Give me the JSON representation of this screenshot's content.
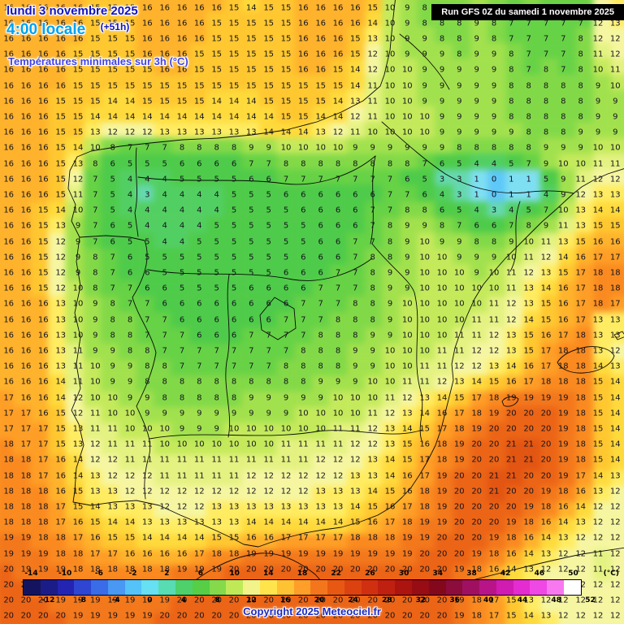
{
  "header": {
    "date": "lundi 3 novembre 2025",
    "time": "4:00 locale",
    "offset": "(+51h)",
    "subtitle": "Températures minimales sur 3h (°C)",
    "run_info": "Run GFS 0Z du samedi 1 novembre 2025"
  },
  "footer": {
    "copyright": "Copyright 2025 Meteociel.fr",
    "unit_label": "(°C)"
  },
  "scale": {
    "min": -14,
    "max": 52,
    "step": 2,
    "top_labels": [
      -14,
      -10,
      -6,
      -2,
      2,
      6,
      10,
      14,
      18,
      22,
      26,
      30,
      34,
      38,
      42,
      46,
      50
    ],
    "bottom_labels": [
      -12,
      -8,
      -4,
      0,
      4,
      8,
      12,
      16,
      20,
      24,
      28,
      32,
      36,
      40,
      44,
      48,
      52
    ],
    "segment_colors": [
      "#14145e",
      "#1c1c88",
      "#2424b2",
      "#2e46d2",
      "#3a6ce8",
      "#4898f4",
      "#55c2f8",
      "#66e0f2",
      "#58dcb2",
      "#4ed06a",
      "#56ce46",
      "#84da4a",
      "#c0e958",
      "#f2f388",
      "#ffe44c",
      "#ffc232",
      "#ff9e28",
      "#f4761c",
      "#e85812",
      "#dc4210",
      "#d03010",
      "#c02010",
      "#ac1410",
      "#980c14",
      "#84081c",
      "#8c0c3c",
      "#a01060",
      "#b81488",
      "#d01cb0",
      "#e42cd0",
      "#f048e4",
      "#f878f0",
      "#ffffff"
    ]
  },
  "map": {
    "palette": [
      {
        "upto": -10,
        "color": "#2828a8"
      },
      {
        "upto": -6,
        "color": "#3a5ae0"
      },
      {
        "upto": -2,
        "color": "#4a9af4"
      },
      {
        "upto": 0,
        "color": "#5ec8f8"
      },
      {
        "upto": 1,
        "color": "#7fdff2"
      },
      {
        "upto": 3,
        "color": "#66d8b0"
      },
      {
        "upto": 4,
        "color": "#52cf62"
      },
      {
        "upto": 6,
        "color": "#4ecb4a"
      },
      {
        "upto": 7,
        "color": "#66d246"
      },
      {
        "upto": 8,
        "color": "#82d948"
      },
      {
        "upto": 9,
        "color": "#a2e14e"
      },
      {
        "upto": 10,
        "color": "#c4ea5c"
      },
      {
        "upto": 11,
        "color": "#e4f282"
      },
      {
        "upto": 12,
        "color": "#f6f6a2"
      },
      {
        "upto": 13,
        "color": "#ffec62"
      },
      {
        "upto": 14,
        "color": "#ffda3c"
      },
      {
        "upto": 15,
        "color": "#ffc730"
      },
      {
        "upto": 16,
        "color": "#ffb22c"
      },
      {
        "upto": 17,
        "color": "#ff9e26"
      },
      {
        "upto": 18,
        "color": "#fa8a20"
      },
      {
        "upto": 19,
        "color": "#f3781c"
      },
      {
        "upto": 20,
        "color": "#ec6416"
      },
      {
        "upto": 21,
        "color": "#e25512"
      },
      {
        "upto": 99,
        "color": "#d84a0e"
      }
    ],
    "grid": {
      "cols": 36,
      "rows": 40,
      "values": [
        "16 16 16 16 16 15 15 15 16 16 16 16 16 15 14 15 15 16 16 16 16 15 10 9 8 8 8 9 8 7 8 7 7 7 12 13",
        "16 16 16 16 16 15 15 15 16 16 16 16 15 15 15 15 15 16 16 16 16 14 10 9 8 8 8 9 8 7 7 7 7 7 12 13",
        "16 16 16 16 16 15 15 15 16 16 16 16 15 15 15 15 15 16 16 16 15 13 10 9 9 8 8 9 8 7 7 7 7 8 12 12",
        "16 16 16 16 15 15 15 15 16 16 16 15 15 15 15 15 15 16 16 16 15 12 10 9 9 9 8 9 9 8 7 7 7 8 11 12",
        "16 16 16 16 15 15 15 15 15 16 16 15 15 15 15 15 15 16 16 15 14 12 10 10 9 9 9 9 9 8 7 8 7 8 10 11",
        "16 16 16 16 15 15 15 15 15 15 15 15 15 15 15 15 15 15 15 15 14 11 10 10 9 9 9 9 9 8 8 8 8 8 9 10",
        "16 16 16 15 15 15 14 14 15 15 15 15 14 14 14 15 15 15 15 14 13 11 10 10 9 9 9 9 9 8 8 8 8 8 9 9",
        "16 16 16 15 15 14 14 14 14 14 14 14 14 14 14 14 15 15 14 14 12 11 10 10 10 9 9 9 9 8 8 8 8 8 9 9",
        "16 16 16 15 15 13 12 12 12 13 13 13 13 13 13 14 14 14 13 12 11 10 10 10 10 9 9 9 9 9 8 8 8 9 9 9",
        "16 16 16 15 14 10 8 7 7 7 8 8 8 8 9 9 10 10 10 10 9 9 9 9 9 9 8 8 8 8 8 9 9 9 10 10",
        "16 16 16 15 13 8 6 5 5 5 6 6 6 6 7 7 8 8 8 8 8 8 8 8 7 6 5 4 4 5 7 9 10 10 11 11",
        "16 16 16 15 12 7 5 4 4 4 5 5 5 5 6 6 7 7 7 7 7 7 7 6 5 3 3 1 0 1 1 5 9 11 12 12",
        "16 16 16 15 11 7 5 4 3 4 4 4 4 5 5 5 6 6 6 6 6 6 7 7 6 4 3 1 0 1 1 4 9 12 13 13",
        "16 16 15 14 10 7 5 4 4 4 4 4 4 5 5 5 5 6 6 6 6 7 7 8 8 6 5 4 3 4 5 7 10 13 14 14",
        "16 16 15 13 9 7 6 5 4 4 4 4 5 5 5 5 5 5 6 6 6 7 8 9 9 8 7 6 6 7 8 9 11 13 15 15",
        "16 16 15 12 9 7 6 5 5 4 4 5 5 5 5 5 5 5 6 6 7 7 8 9 10 9 9 8 8 9 10 11 13 15 16 16",
        "16 16 15 12 9 8 7 6 5 5 5 5 5 5 5 5 5 6 6 6 7 8 8 9 10 10 9 9 9 10 11 12 14 16 17 17",
        "16 16 15 12 9 8 7 6 6 5 5 5 5 5 5 5 6 6 6 7 7 8 9 9 10 10 10 9 10 11 12 13 15 17 18 18",
        "16 16 15 12 10 8 7 7 6 6 5 5 5 5 6 6 6 6 7 7 7 8 9 9 10 10 10 10 10 11 13 14 16 17 18 18",
        "16 16 16 13 10 9 8 7 7 6 6 6 6 6 6 6 6 7 7 7 8 8 9 10 10 10 10 10 11 12 13 15 16 17 18 17",
        "16 16 16 13 10 9 8 8 7 7 6 6 6 6 6 6 7 7 7 8 8 8 9 10 10 10 10 11 11 12 14 15 16 17 13 13",
        "16 16 16 13 10 9 8 8 7 7 7 6 6 6 7 7 7 7 8 8 8 9 9 10 10 10 11 11 12 13 15 16 17 18 13 13",
        "16 16 16 13 11 9 9 8 8 7 7 7 7 7 7 7 7 8 8 8 9 9 10 10 10 11 11 12 12 13 15 17 18 18 13 12",
        "16 16 16 13 11 10 9 9 8 8 7 7 7 7 7 7 8 8 8 8 9 9 10 10 11 11 12 12 13 14 16 17 18 18 14 13",
        "16 16 16 14 11 10 9 9 8 8 8 8 8 8 8 8 8 8 9 9 9 10 10 11 11 12 13 14 15 16 17 18 18 18 15 14",
        "17 16 16 14 12 10 10 9 9 8 8 8 8 8 9 9 9 9 9 10 10 10 11 12 13 14 15 17 18 19 19 19 19 18 15 14",
        "17 17 16 15 12 11 10 10 9 9 9 9 9 9 9 9 9 10 10 10 10 11 12 13 14 16 17 18 19 20 20 20 19 18 15 14",
        "17 17 17 15 13 11 11 10 10 10 9 9 9 10 10 10 10 10 10 11 11 12 13 14 15 17 18 19 20 20 20 20 19 18 15 14",
        "18 17 17 15 13 12 11 11 11 10 10 10 10 10 10 10 11 11 11 11 12 12 13 15 16 18 19 20 20 21 21 20 19 18 15 14",
        "18 18 17 16 14 12 12 11 11 11 11 11 11 11 11 11 11 11 12 12 12 13 14 15 17 18 19 20 20 21 21 20 19 18 15 14",
        "18 18 17 16 14 13 12 12 12 11 11 11 11 11 12 12 12 12 12 12 13 13 14 16 17 19 20 20 21 21 20 20 19 17 14 13",
        "18 18 18 16 15 13 13 12 12 12 12 12 12 12 12 12 12 12 13 13 13 14 15 16 18 19 20 20 21 20 20 19 18 16 13 12",
        "18 18 18 17 15 14 13 13 13 12 12 12 13 13 13 13 13 13 13 13 14 15 16 17 18 19 20 20 20 20 19 18 16 14 12 12",
        "18 18 18 17 16 15 14 14 13 13 13 13 13 13 14 14 14 14 14 14 15 16 17 18 19 19 20 20 20 19 18 16 14 13 12 12",
        "19 19 18 18 17 16 15 15 14 14 14 14 15 15 16 16 17 17 17 17 18 18 18 19 19 20 20 20 19 18 16 14 13 12 12 12",
        "19 19 19 18 18 17 17 16 16 16 16 17 18 18 19 19 19 19 19 19 19 19 19 19 20 20 20 19 18 16 14 13 12 12 11 12",
        "20 19 19 19 18 18 18 18 18 18 19 19 19 20 20 20 20 20 20 20 20 20 20 20 20 20 19 18 16 14 13 12 12 12 11 12",
        "20 20 19 19 19 19 19 19 19 19 19 20 20 20 20 20 20 20 20 20 20 20 20 20 20 20 19 18 16 14 13 12 12 12 12 12",
        "20 20 20 19 19 19 19 19 19 19 20 20 20 20 20 20 20 20 20 20 20 20 20 20 20 20 19 18 17 15 13 12 12 12 12 12",
        "20 20 20 20 19 19 19 19 19 20 20 20 20 20 20 20 20 20 20 20 20 20 20 20 20 20 19 18 17 15 14 13 12 12 12 12"
      ]
    }
  }
}
